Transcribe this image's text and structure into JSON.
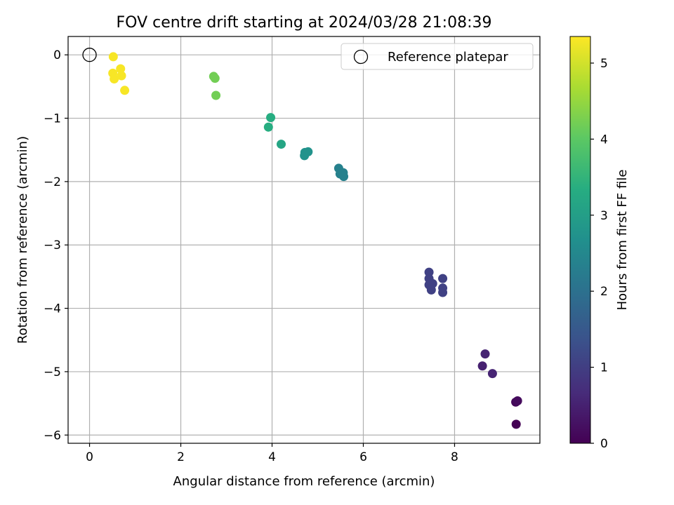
{
  "chart_data": {
    "type": "scatter",
    "title": "FOV centre drift starting at 2024/03/28 21:08:39",
    "xlabel": "Angular distance from reference (arcmin)",
    "ylabel": "Rotation from reference (arcmin)",
    "xlim": [
      -0.47,
      9.87
    ],
    "ylim": [
      -6.13,
      0.29
    ],
    "xticks": [
      0,
      2,
      4,
      6,
      8
    ],
    "yticks": [
      0,
      -1,
      -2,
      -3,
      -4,
      -5,
      -6
    ],
    "grid": true,
    "legend": {
      "placement": "top-right",
      "entries": [
        "Reference platepar"
      ]
    },
    "reference_point": {
      "x": 0,
      "y": 0,
      "marker": "hollow-circle",
      "color": "#000000"
    },
    "colorbar": {
      "label": "Hours from first FF file",
      "range": [
        0,
        5.35
      ],
      "ticks": [
        0,
        1,
        2,
        3,
        4,
        5
      ],
      "colormap": "viridis"
    },
    "points": [
      {
        "x": 9.35,
        "y": -5.83,
        "hours": 0.0
      },
      {
        "x": 9.34,
        "y": -5.48,
        "hours": 0.1
      },
      {
        "x": 9.38,
        "y": -5.46,
        "hours": 0.15
      },
      {
        "x": 8.61,
        "y": -4.91,
        "hours": 0.5
      },
      {
        "x": 8.67,
        "y": -4.72,
        "hours": 0.55
      },
      {
        "x": 8.83,
        "y": -5.03,
        "hours": 0.55
      },
      {
        "x": 7.44,
        "y": -3.43,
        "hours": 1.05
      },
      {
        "x": 7.44,
        "y": -3.53,
        "hours": 1.05
      },
      {
        "x": 7.44,
        "y": -3.63,
        "hours": 1.05
      },
      {
        "x": 7.49,
        "y": -3.71,
        "hours": 1.05
      },
      {
        "x": 7.52,
        "y": -3.61,
        "hours": 1.05
      },
      {
        "x": 7.74,
        "y": -3.53,
        "hours": 1.05
      },
      {
        "x": 7.74,
        "y": -3.68,
        "hours": 1.05
      },
      {
        "x": 7.74,
        "y": -3.75,
        "hours": 1.05
      },
      {
        "x": 5.46,
        "y": -1.79,
        "hours": 2.35
      },
      {
        "x": 5.49,
        "y": -1.88,
        "hours": 2.35
      },
      {
        "x": 5.56,
        "y": -1.86,
        "hours": 2.35
      },
      {
        "x": 5.57,
        "y": -1.92,
        "hours": 2.35
      },
      {
        "x": 4.71,
        "y": -1.59,
        "hours": 2.75
      },
      {
        "x": 4.72,
        "y": -1.54,
        "hours": 2.75
      },
      {
        "x": 4.79,
        "y": -1.53,
        "hours": 2.75
      },
      {
        "x": 4.2,
        "y": -1.41,
        "hours": 3.15
      },
      {
        "x": 3.92,
        "y": -1.14,
        "hours": 3.35
      },
      {
        "x": 3.97,
        "y": -0.99,
        "hours": 3.35
      },
      {
        "x": 2.72,
        "y": -0.34,
        "hours": 4.2
      },
      {
        "x": 2.75,
        "y": -0.37,
        "hours": 4.2
      },
      {
        "x": 2.77,
        "y": -0.64,
        "hours": 4.2
      },
      {
        "x": 0.52,
        "y": -0.03,
        "hours": 5.3
      },
      {
        "x": 0.51,
        "y": -0.29,
        "hours": 5.3
      },
      {
        "x": 0.54,
        "y": -0.38,
        "hours": 5.3
      },
      {
        "x": 0.68,
        "y": -0.22,
        "hours": 5.3
      },
      {
        "x": 0.7,
        "y": -0.33,
        "hours": 5.3
      },
      {
        "x": 0.77,
        "y": -0.56,
        "hours": 5.3
      }
    ]
  }
}
